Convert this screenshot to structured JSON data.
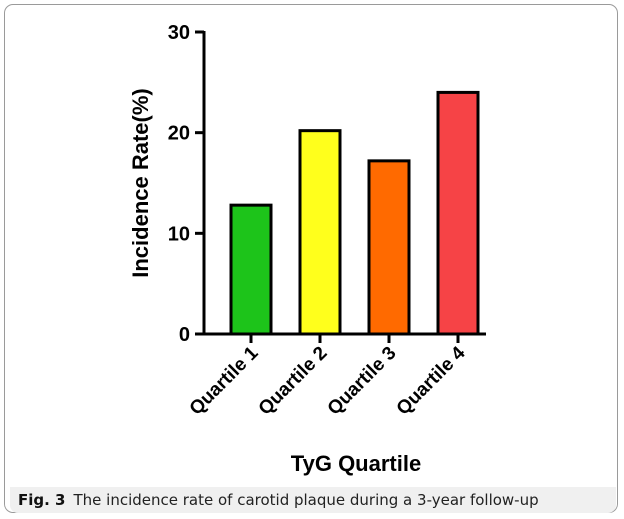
{
  "chart_data": {
    "type": "bar",
    "categories": [
      "Quartile 1",
      "Quartile 2",
      "Quartile 3",
      "Quartile 4"
    ],
    "values": [
      12.8,
      20.2,
      17.2,
      24.0
    ],
    "colors": [
      "#1dc41a",
      "#ffff1c",
      "#ff6a00",
      "#f64346"
    ],
    "xlabel": "TyG Quartile",
    "ylabel": "Incidence Rate(%)",
    "ylim": [
      0,
      30
    ],
    "yticks": [
      0,
      10,
      20,
      30
    ],
    "grid": false
  },
  "caption": {
    "label": "Fig. 3",
    "text": "The incidence rate of carotid plaque during a 3-year follow-up"
  }
}
